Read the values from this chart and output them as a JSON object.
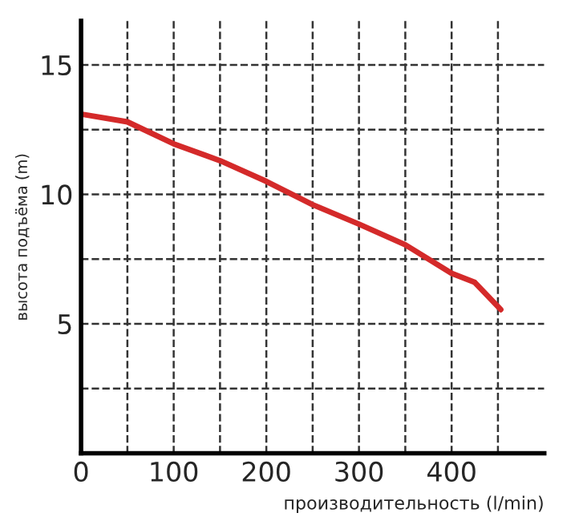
{
  "chart_data": {
    "type": "line",
    "xlabel": "производительность (l/min)",
    "ylabel": "высота подъёма (m)",
    "x": [
      0,
      50,
      100,
      150,
      200,
      250,
      300,
      350,
      400,
      425,
      453
    ],
    "series": [
      {
        "color": "#d42a2a",
        "values": [
          13.1,
          12.8,
          11.95,
          11.3,
          10.5,
          9.6,
          8.85,
          8.05,
          6.95,
          6.6,
          5.55
        ]
      }
    ],
    "xlim": [
      0,
      500
    ],
    "ylim": [
      0,
      16.7
    ],
    "xticks": [
      0,
      {
        "value": 50,
        "label": null
      },
      100,
      {
        "value": 150,
        "label": null
      },
      200,
      {
        "value": 250,
        "label": null
      },
      300,
      {
        "value": 350,
        "label": null
      },
      400,
      {
        "value": 450,
        "label": null
      }
    ],
    "yticks": [
      {
        "value": 2.5,
        "label": null
      },
      5,
      {
        "value": 7.5,
        "label": null
      },
      10,
      {
        "value": 12.5,
        "label": null
      },
      15
    ],
    "grid": true,
    "line_style": "solid",
    "marker": "none"
  }
}
